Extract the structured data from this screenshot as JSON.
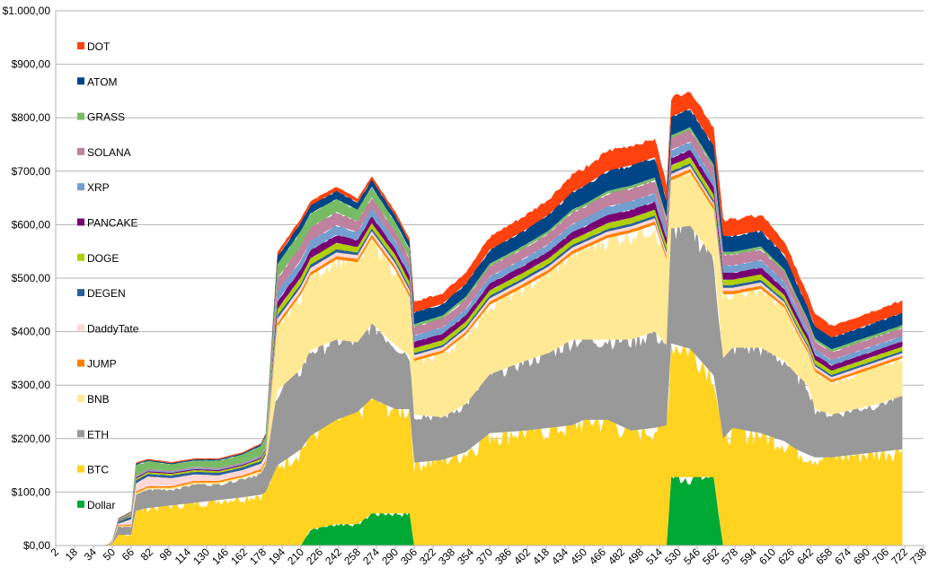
{
  "chart_data": {
    "type": "area",
    "stacked": true,
    "grid": "horizontal",
    "legend_placement": "left",
    "ylim": [
      0,
      1000
    ],
    "x_start": 2,
    "x_end": 738,
    "x_tick_step": 16,
    "y_ticks": [
      "$0,00",
      "$100,00",
      "$200,00",
      "$300,00",
      "$400,00",
      "$500,00",
      "$600,00",
      "$700,00",
      "$800,00",
      "$900,00",
      "$1.000,00"
    ],
    "x_ticks": [
      "2",
      "18",
      "34",
      "50",
      "66",
      "82",
      "98",
      "114",
      "130",
      "146",
      "162",
      "178",
      "194",
      "210",
      "226",
      "242",
      "258",
      "274",
      "290",
      "306",
      "322",
      "338",
      "354",
      "370",
      "386",
      "402",
      "418",
      "434",
      "450",
      "466",
      "482",
      "498",
      "514",
      "530",
      "546",
      "562",
      "578",
      "594",
      "610",
      "626",
      "642",
      "658",
      "674",
      "690",
      "706",
      "722",
      "738"
    ],
    "x": [
      2,
      40,
      46,
      50,
      55,
      66,
      70,
      80,
      100,
      120,
      140,
      160,
      176,
      180,
      190,
      210,
      218,
      240,
      258,
      270,
      290,
      302,
      306,
      330,
      350,
      370,
      400,
      420,
      440,
      450,
      470,
      490,
      510,
      520,
      524,
      540,
      560,
      568,
      576,
      600,
      620,
      630,
      640,
      646,
      660,
      680,
      700,
      720
    ],
    "series": [
      {
        "name": "Dollar",
        "color": "#00a933",
        "values": [
          0,
          0,
          0,
          0,
          0,
          0,
          0,
          0,
          0,
          0,
          0,
          0,
          0,
          0,
          0,
          0,
          30,
          40,
          40,
          60,
          60,
          60,
          0,
          0,
          0,
          0,
          0,
          0,
          0,
          0,
          0,
          0,
          0,
          0,
          128,
          128,
          128,
          0,
          0,
          0,
          0,
          0,
          0,
          0,
          0,
          0,
          0,
          0
        ]
      },
      {
        "name": "BTC",
        "color": "#ffd320",
        "values": [
          0,
          0,
          1,
          3,
          20,
          20,
          65,
          70,
          75,
          80,
          85,
          90,
          95,
          100,
          150,
          180,
          175,
          195,
          210,
          215,
          195,
          195,
          155,
          160,
          175,
          210,
          215,
          220,
          225,
          235,
          235,
          215,
          220,
          225,
          250,
          240,
          190,
          200,
          220,
          210,
          195,
          180,
          170,
          165,
          165,
          170,
          175,
          180
        ]
      },
      {
        "name": "ETH",
        "color": "#999999",
        "values": [
          0,
          0,
          1,
          2,
          15,
          15,
          30,
          35,
          30,
          35,
          30,
          35,
          40,
          50,
          140,
          150,
          160,
          150,
          130,
          140,
          120,
          100,
          90,
          80,
          90,
          110,
          130,
          140,
          160,
          150,
          150,
          170,
          180,
          150,
          215,
          230,
          220,
          150,
          150,
          160,
          150,
          140,
          130,
          90,
          80,
          85,
          90,
          100
        ]
      },
      {
        "name": "BNB",
        "color": "#ffe994",
        "values": [
          0,
          0,
          0,
          1,
          1,
          2,
          3,
          3,
          3,
          3,
          3,
          3,
          4,
          5,
          120,
          140,
          140,
          150,
          150,
          160,
          140,
          110,
          100,
          120,
          130,
          130,
          140,
          150,
          160,
          170,
          190,
          200,
          200,
          160,
          90,
          100,
          90,
          120,
          100,
          110,
          100,
          80,
          60,
          70,
          60,
          65,
          70,
          70
        ]
      },
      {
        "name": "JUMP",
        "color": "#ff8000",
        "values": [
          0,
          0,
          0,
          1,
          2,
          2,
          3,
          3,
          3,
          3,
          3,
          3,
          4,
          4,
          6,
          6,
          6,
          6,
          6,
          6,
          6,
          6,
          5,
          5,
          5,
          6,
          6,
          6,
          6,
          6,
          6,
          6,
          6,
          6,
          6,
          6,
          6,
          6,
          6,
          6,
          5,
          5,
          5,
          5,
          5,
          5,
          5,
          5
        ]
      },
      {
        "name": "DaddyTate",
        "color": "#ffd7d7",
        "values": [
          0,
          0,
          0,
          2,
          3,
          10,
          15,
          18,
          15,
          12,
          10,
          10,
          10,
          10,
          8,
          8,
          8,
          7,
          7,
          7,
          7,
          7,
          6,
          6,
          6,
          6,
          6,
          6,
          6,
          6,
          6,
          6,
          6,
          6,
          6,
          6,
          6,
          6,
          6,
          6,
          5,
          5,
          5,
          5,
          5,
          5,
          5,
          5
        ]
      },
      {
        "name": "DEGEN",
        "color": "#2a6099",
        "values": [
          0,
          0,
          0,
          1,
          3,
          6,
          6,
          5,
          5,
          5,
          5,
          5,
          5,
          5,
          6,
          6,
          6,
          6,
          5,
          5,
          5,
          5,
          4,
          4,
          4,
          5,
          5,
          5,
          5,
          5,
          5,
          5,
          5,
          5,
          5,
          5,
          5,
          5,
          5,
          5,
          4,
          4,
          4,
          4,
          4,
          4,
          4,
          4
        ]
      },
      {
        "name": "DOGE",
        "color": "#aecf00",
        "values": [
          0,
          0,
          0,
          0,
          1,
          2,
          3,
          3,
          3,
          3,
          3,
          3,
          4,
          4,
          12,
          12,
          12,
          12,
          10,
          10,
          10,
          10,
          9,
          9,
          9,
          10,
          10,
          10,
          10,
          10,
          11,
          11,
          11,
          10,
          11,
          11,
          11,
          10,
          10,
          10,
          9,
          9,
          8,
          8,
          8,
          8,
          8,
          8
        ]
      },
      {
        "name": "PANCAKE",
        "color": "#780373",
        "values": [
          0,
          0,
          0,
          0,
          1,
          1,
          2,
          2,
          2,
          2,
          2,
          2,
          2,
          2,
          15,
          15,
          15,
          15,
          13,
          13,
          12,
          12,
          12,
          12,
          12,
          13,
          13,
          13,
          14,
          14,
          15,
          15,
          15,
          13,
          14,
          14,
          14,
          13,
          13,
          13,
          12,
          11,
          10,
          10,
          10,
          10,
          10,
          10
        ]
      },
      {
        "name": "XRP",
        "color": "#729fcf",
        "values": [
          0,
          0,
          0,
          0,
          1,
          1,
          2,
          2,
          2,
          2,
          2,
          2,
          2,
          2,
          18,
          18,
          18,
          18,
          15,
          15,
          14,
          14,
          12,
          12,
          12,
          13,
          13,
          14,
          15,
          15,
          16,
          16,
          16,
          14,
          15,
          15,
          15,
          14,
          14,
          14,
          13,
          12,
          10,
          10,
          10,
          10,
          10,
          10
        ]
      },
      {
        "name": "SOLANA",
        "color": "#bf819e",
        "values": [
          0,
          0,
          0,
          0,
          1,
          1,
          2,
          2,
          2,
          2,
          2,
          2,
          2,
          2,
          25,
          26,
          25,
          25,
          20,
          20,
          18,
          18,
          16,
          17,
          18,
          19,
          19,
          20,
          22,
          22,
          24,
          24,
          24,
          20,
          22,
          22,
          22,
          20,
          20,
          20,
          18,
          17,
          15,
          15,
          15,
          15,
          15,
          15
        ]
      },
      {
        "name": "GRASS",
        "color": "#77bc65",
        "values": [
          0,
          0,
          0,
          0,
          1,
          2,
          20,
          15,
          12,
          12,
          14,
          15,
          18,
          20,
          26,
          28,
          26,
          24,
          22,
          20,
          18,
          18,
          5,
          5,
          5,
          5,
          5,
          5,
          5,
          5,
          5,
          5,
          5,
          5,
          5,
          5,
          5,
          5,
          5,
          5,
          5,
          5,
          5,
          5,
          5,
          5,
          5,
          5
        ]
      },
      {
        "name": "ATOM",
        "color": "#004586",
        "values": [
          0,
          0,
          0,
          0,
          1,
          1,
          2,
          2,
          2,
          2,
          2,
          2,
          3,
          3,
          15,
          15,
          15,
          15,
          14,
          13,
          12,
          12,
          22,
          22,
          24,
          26,
          28,
          30,
          33,
          34,
          38,
          38,
          38,
          30,
          35,
          35,
          35,
          30,
          30,
          30,
          28,
          25,
          22,
          22,
          22,
          22,
          23,
          23
        ]
      },
      {
        "name": "DOT",
        "color": "#ff420e",
        "values": [
          0,
          0,
          0,
          0,
          1,
          1,
          2,
          2,
          2,
          2,
          2,
          2,
          2,
          2,
          8,
          8,
          8,
          8,
          7,
          7,
          7,
          7,
          20,
          20,
          22,
          24,
          26,
          28,
          32,
          33,
          36,
          36,
          36,
          30,
          34,
          34,
          34,
          30,
          30,
          30,
          26,
          24,
          22,
          22,
          22,
          22,
          22,
          23
        ]
      }
    ]
  }
}
